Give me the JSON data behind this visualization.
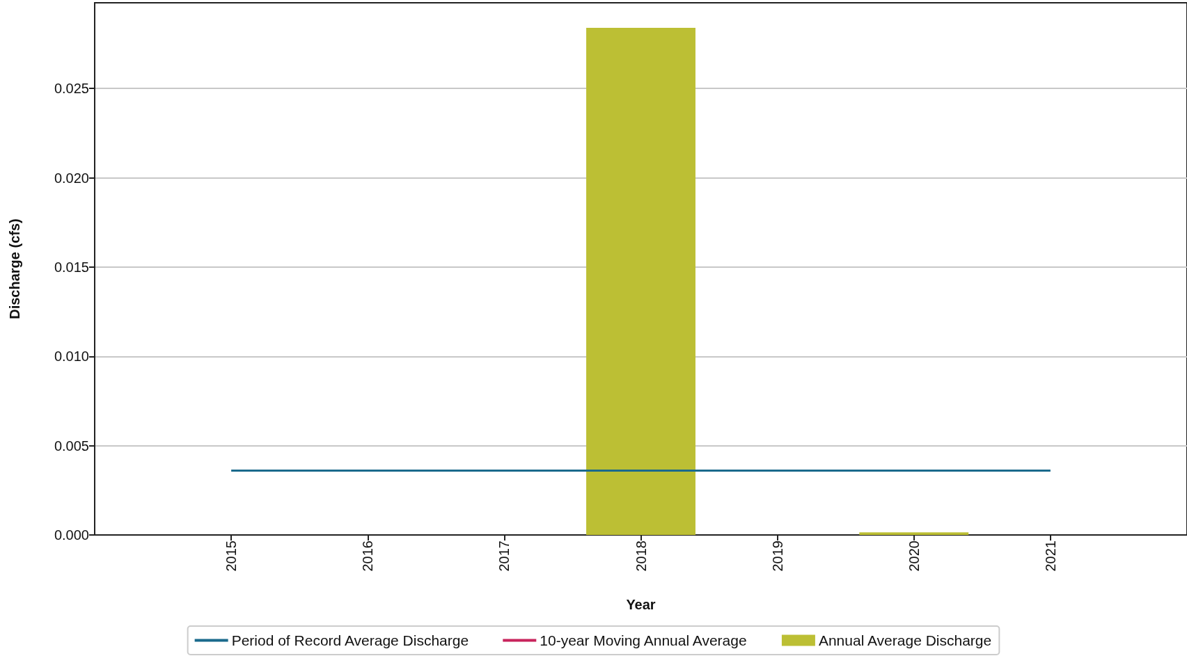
{
  "chart_data": {
    "type": "bar",
    "xlabel": "Year",
    "ylabel": "Discharge (cfs)",
    "x": [
      2015,
      2016,
      2017,
      2018,
      2019,
      2020,
      2021
    ],
    "series": [
      {
        "name": "Period of Record Average Discharge",
        "type": "line",
        "color": "#1a6a8c",
        "values": [
          0.0036,
          0.0036,
          0.0036,
          0.0036,
          0.0036,
          0.0036,
          0.0036
        ]
      },
      {
        "name": "10-year Moving Annual Average",
        "type": "line",
        "color": "#c8245c",
        "values": [
          null,
          null,
          null,
          null,
          null,
          null,
          null
        ]
      },
      {
        "name": "Annual Average Discharge",
        "color": "#bcbf34",
        "values": [
          0,
          0,
          0,
          0.0284,
          0,
          0.00015,
          0
        ]
      }
    ],
    "xlim": [
      2014,
      2022
    ],
    "xticks": [
      2015,
      2016,
      2017,
      2018,
      2019,
      2020,
      2021
    ],
    "ylim": [
      0,
      0.0298
    ],
    "yticks": [
      {
        "value": 0,
        "label": "0.000"
      },
      {
        "value": 0.005,
        "label": "0.005"
      },
      {
        "value": 0.01,
        "label": "0.010"
      },
      {
        "value": 0.015,
        "label": "0.015"
      },
      {
        "value": 0.02,
        "label": "0.020"
      },
      {
        "value": 0.025,
        "label": "0.025"
      }
    ],
    "grid": "y",
    "legend": "bottom",
    "marker": "none"
  }
}
